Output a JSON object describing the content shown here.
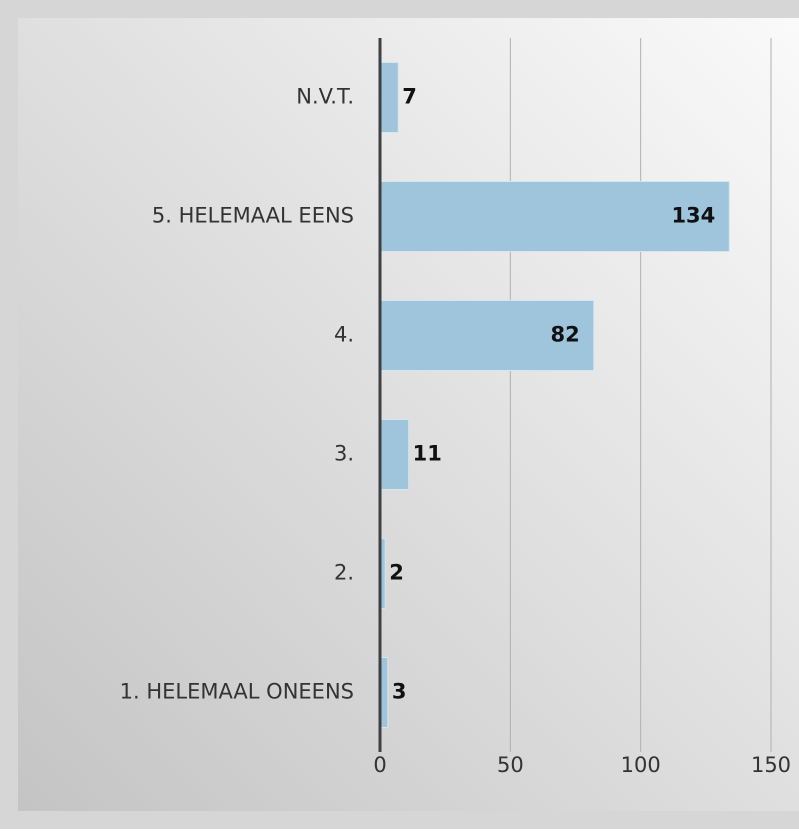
{
  "chart_data": {
    "type": "bar",
    "orientation": "horizontal",
    "categories": [
      "N.V.T.",
      "5. HELEMAAL EENS",
      "4.",
      "3.",
      "2.",
      "1. HELEMAAL ONEENS"
    ],
    "values": [
      7,
      134,
      82,
      11,
      2,
      3
    ],
    "color": "#9fc5dc",
    "xlim": [
      0,
      150
    ],
    "xticks": [
      0,
      50,
      100,
      150
    ],
    "grid": true
  }
}
